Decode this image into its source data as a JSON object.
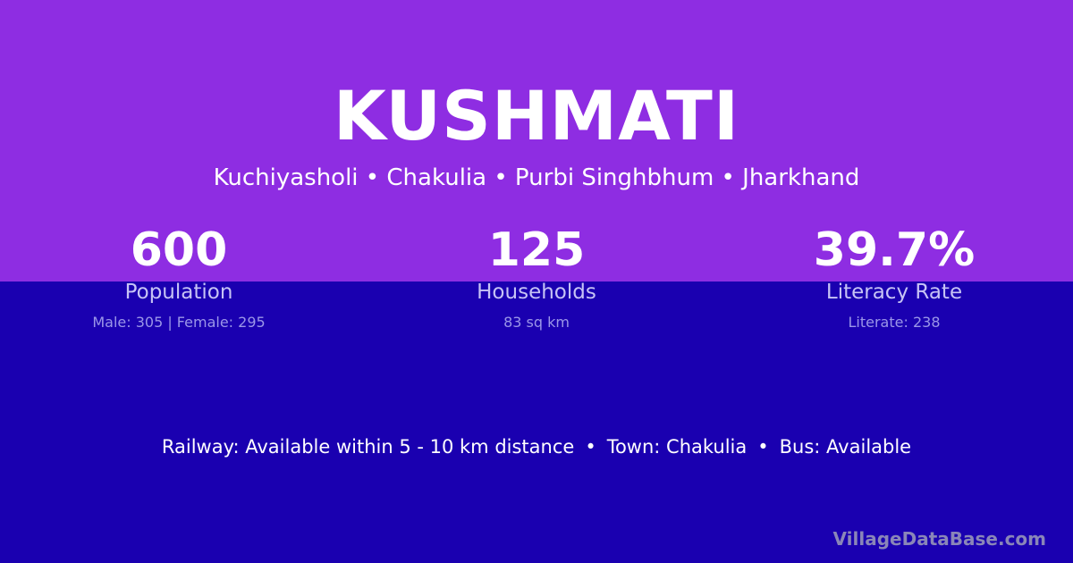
{
  "title": "KUSHMATI",
  "location": "Kuchiyasholi • Chakulia • Purbi Singhbhum • Jharkhand",
  "stats": [
    {
      "value": "600",
      "label": "Population",
      "detail": "Male: 305 | Female: 295"
    },
    {
      "value": "125",
      "label": "Households",
      "detail": "83 sq km"
    },
    {
      "value": "39.7%",
      "label": "Literacy Rate",
      "detail": "Literate: 238"
    }
  ],
  "facts": [
    "Railway: Available within 5 - 10 km distance",
    "Town: Chakulia",
    "Bus: Available"
  ],
  "fact_separator": "•",
  "brand": "VillageDataBase.com",
  "colors": {
    "top_band": "#8e2de2",
    "bottom_band": "#1a00b0"
  }
}
